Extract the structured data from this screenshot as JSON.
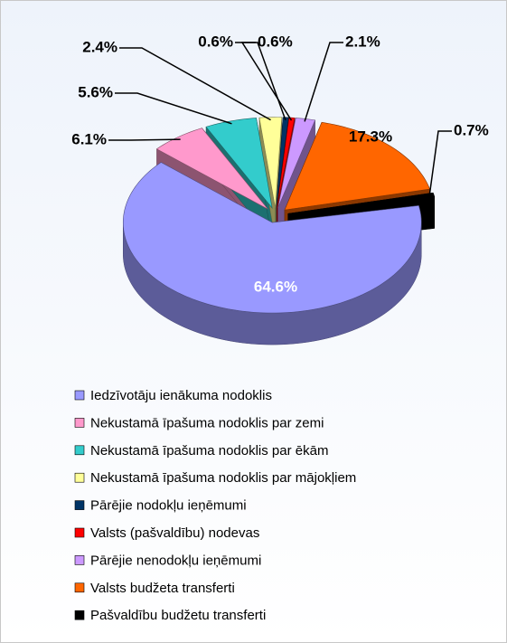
{
  "chart_data": {
    "type": "pie3d",
    "categories": [
      "Iedzīvotāju ienākuma nodoklis",
      "Nekustamā īpašuma nodoklis par zemi",
      "Nekustamā īpašuma nodoklis par ēkām",
      "Nekustamā īpašuma nodoklis par mājokļiem",
      "Pārējie nodokļu ieņēmumi",
      "Valsts (pašvaldību) nodevas",
      "Pārējie nenodokļu ieņēmumi",
      "Valsts budžeta transferti",
      "Pašvaldību budžetu transferti"
    ],
    "values": [
      64.6,
      6.1,
      5.6,
      2.4,
      0.6,
      0.6,
      2.1,
      17.3,
      0.7
    ],
    "value_labels": [
      "64.6%",
      "6.1%",
      "5.6%",
      "2.4%",
      "0.6%",
      "0.6%",
      "2.1%",
      "17.3%",
      "0.7%"
    ],
    "colors": [
      "#9999ff",
      "#ff99cc",
      "#33cccc",
      "#ffff99",
      "#003366",
      "#ff0000",
      "#cc99ff",
      "#ff6600",
      "#000000"
    ],
    "legend": "bottom"
  }
}
